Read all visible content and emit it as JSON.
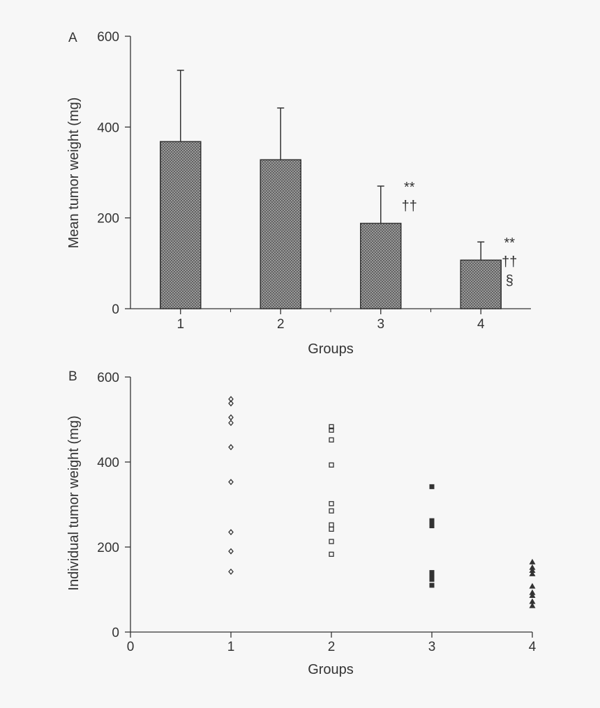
{
  "colors": {
    "background": "#f7f7f7",
    "ink": "#333333",
    "bar_fill": "#9a9a9a"
  },
  "chart_data": [
    {
      "type": "bar",
      "panel_label": "A",
      "categories": [
        "1",
        "2",
        "3",
        "4"
      ],
      "values": [
        368,
        328,
        188,
        107
      ],
      "error_upper": [
        525,
        442,
        270,
        147
      ],
      "annotations": [
        [],
        [],
        [
          "**",
          "††"
        ],
        [
          "**",
          "††",
          "§"
        ]
      ],
      "ylabel": "Mean tumor weight (mg)",
      "xlabel": "Groups",
      "ylim": [
        0,
        600
      ],
      "yticks": [
        "0",
        "200",
        "400",
        "600"
      ],
      "grid": false,
      "bar_pattern": "crosshatch"
    },
    {
      "type": "scatter",
      "panel_label": "B",
      "ylabel": "Individual tumor weight (mg)",
      "xlabel": "Groups",
      "xlim": [
        0,
        4
      ],
      "ylim": [
        0,
        600
      ],
      "xticks": [
        "0",
        "1",
        "2",
        "3",
        "4"
      ],
      "yticks": [
        "0",
        "200",
        "400",
        "600"
      ],
      "grid": false,
      "series": [
        {
          "marker": "diamond-open",
          "x": 1,
          "values": [
            548,
            538,
            505,
            492,
            435,
            353,
            235,
            190,
            142
          ]
        },
        {
          "marker": "square-open",
          "x": 2,
          "values": [
            483,
            475,
            452,
            393,
            302,
            285,
            252,
            242,
            213,
            183
          ]
        },
        {
          "marker": "square-filled",
          "x": 3,
          "values": [
            342,
            262,
            258,
            250,
            140,
            134,
            128,
            124,
            110
          ]
        },
        {
          "marker": "triangle-filled",
          "x": 4,
          "values": [
            165,
            152,
            145,
            137,
            108,
            93,
            86,
            72,
            62
          ]
        }
      ]
    }
  ]
}
